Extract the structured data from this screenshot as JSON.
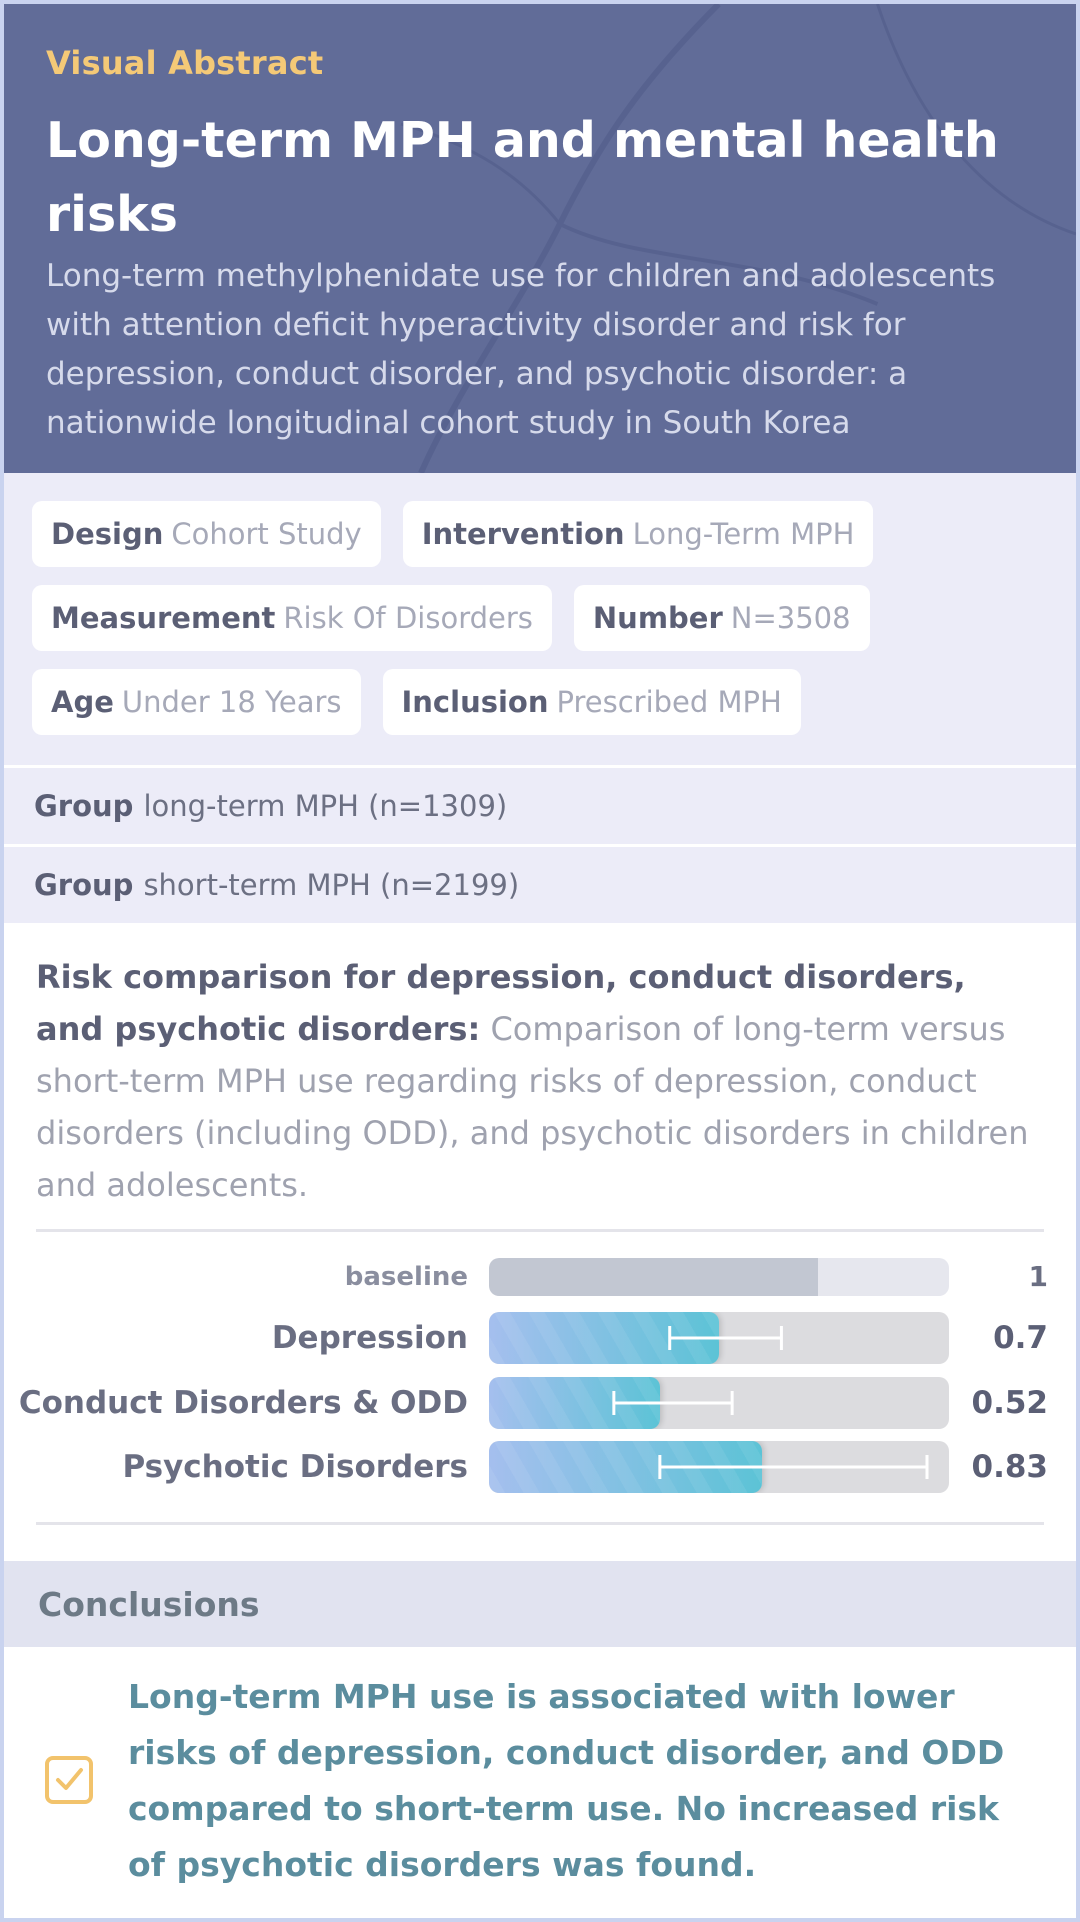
{
  "header": {
    "label": "Visual Abstract",
    "title": "Long-term MPH and mental health risks",
    "subtitle": "Long-term methylphenidate use for children and adolescents with attention deficit hyperactivity disorder and risk for depression, conduct disorder, and psychotic disorder: a nationwide longitudinal cohort study in South Korea"
  },
  "tags": [
    {
      "key": "Design",
      "value": "Cohort Study"
    },
    {
      "key": "Intervention",
      "value": "Long-Term MPH"
    },
    {
      "key": "Measurement",
      "value": "Risk Of Disorders"
    },
    {
      "key": "Number",
      "value": "N=3508"
    },
    {
      "key": "Age",
      "value": "Under 18 Years"
    },
    {
      "key": "Inclusion",
      "value": "Prescribed MPH"
    }
  ],
  "groups": [
    {
      "key": "Group",
      "value": "long-term MPH (n=1309)"
    },
    {
      "key": "Group",
      "value": "short-term MPH (n=2199)"
    }
  ],
  "result": {
    "lead": "Risk comparison for depression, conduct disorders, and psychotic disorders:",
    "description": "Comparison of long-term versus short-term MPH use regarding risks of depression, conduct disorders (including ODD), and psychotic disorders in children and adolescents."
  },
  "chart_data": {
    "type": "bar",
    "orientation": "horizontal",
    "categories": [
      "baseline",
      "Depression",
      "Conduct Disorders & ODD",
      "Psychotic Disorders"
    ],
    "values": [
      1,
      0.7,
      0.52,
      0.83
    ],
    "value_labels": [
      "1",
      "0.7",
      "0.52",
      "0.83"
    ],
    "confidence_intervals": [
      null,
      [
        0.55,
        0.89
      ],
      [
        0.38,
        0.74
      ],
      [
        0.52,
        1.34
      ]
    ],
    "xlim": [
      0,
      1.4
    ],
    "colors": {
      "baseline": "#c2c7d2",
      "bar_start": "#a5bfee",
      "bar_end": "#5cc3d6",
      "track": "#dcdcdf",
      "baseline_track": "#e6e7ee"
    }
  },
  "conclusions": {
    "heading": "Conclusions",
    "text": "Long-term MPH use is associated with lower risks of depression, conduct disorder, and ODD compared to short-term use. No increased risk of psychotic disorders was found.",
    "icon": "checkbox-checked-icon",
    "icon_color": "#f2c36c"
  }
}
